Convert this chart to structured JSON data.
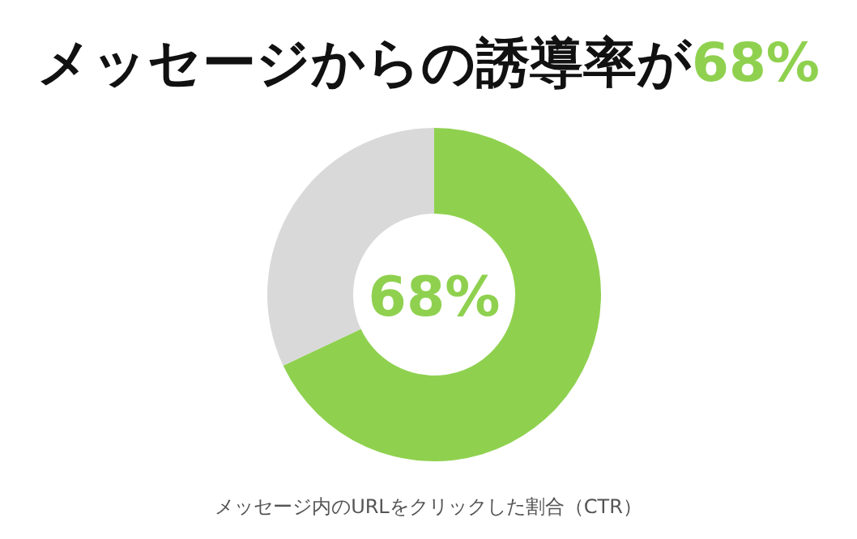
{
  "chart_data": {
    "type": "donut",
    "title": "メッセージからの誘導率が",
    "categories": [
      null,
      null
    ],
    "values": [
      68,
      32
    ],
    "colors": [
      "#8fd14f",
      "#d9d9d9"
    ],
    "value_labels": [
      "68%",
      null
    ],
    "annotations": [
      "68%",
      "メッセージ内のURLをクリックした割合（CTR）"
    ]
  }
}
